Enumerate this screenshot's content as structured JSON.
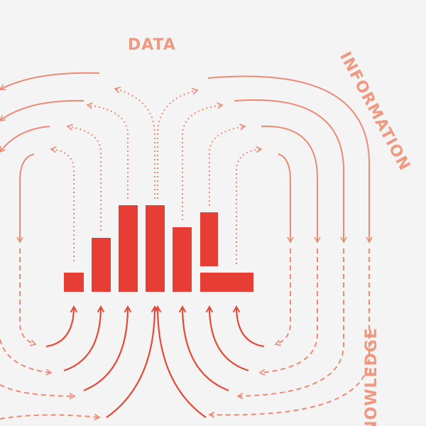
{
  "labels": {
    "data": "DATA",
    "information": "INFORMATION",
    "knowledge": "KNOWLEDGE"
  },
  "colors": {
    "background": "#f4f4f4",
    "bars": "#e63d35",
    "arrows_light": "#ed8a74",
    "arrows_dark": "#e44a38",
    "labels": "#ef9a80"
  }
}
